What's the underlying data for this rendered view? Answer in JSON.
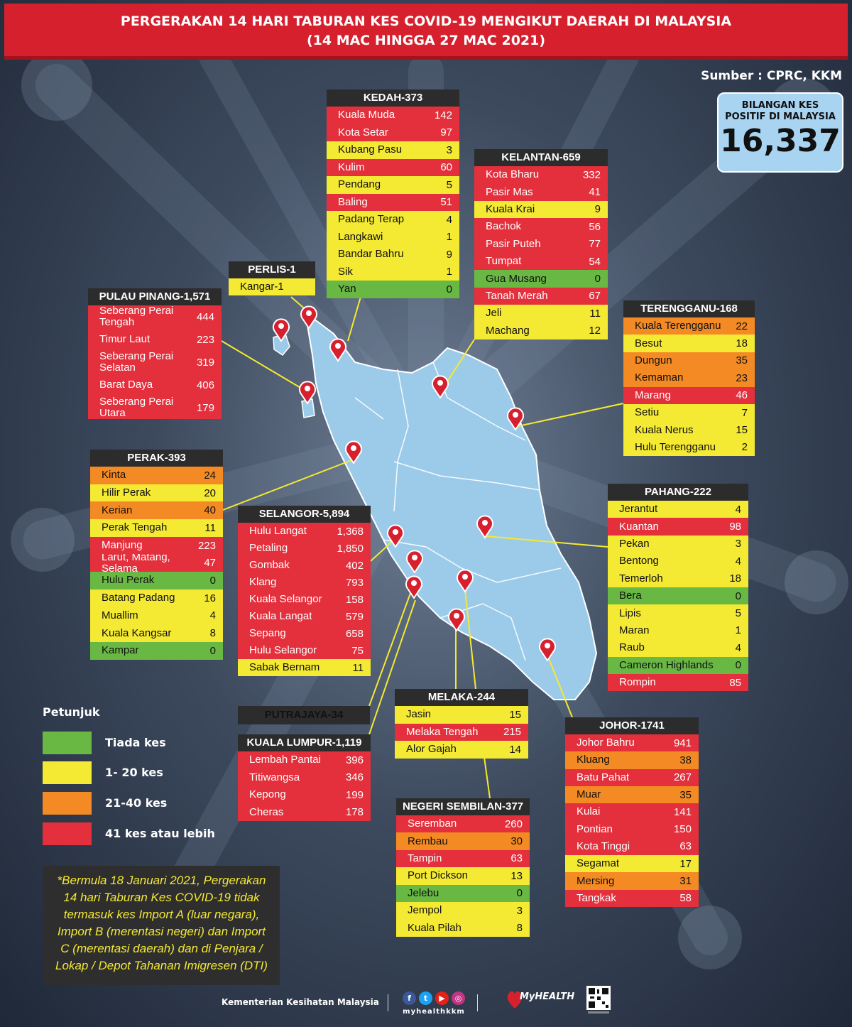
{
  "header": {
    "line1": "PERGERAKAN 14 HARI TABURAN KES COVID-19 MENGIKUT DAERAH DI MALAYSIA",
    "line2": "(14 MAC HINGGA 27 MAC 2021)"
  },
  "source": "Sumber : CPRC, KKM",
  "total": {
    "label_line1": "BILANGAN KES",
    "label_line2": "POSITIF DI MALAYSIA",
    "value": "16,337"
  },
  "colors": {
    "green": "#69b844",
    "yellow": "#f4e933",
    "orange": "#f48a24",
    "red": "#e3303c"
  },
  "states": {
    "kedah": {
      "title": "KEDAH-373",
      "rows": [
        {
          "name": "Kuala Muda",
          "count": "142",
          "level": "r"
        },
        {
          "name": "Kota Setar",
          "count": "97",
          "level": "r"
        },
        {
          "name": "Kubang Pasu",
          "count": "3",
          "level": "y"
        },
        {
          "name": "Kulim",
          "count": "60",
          "level": "r"
        },
        {
          "name": "Pendang",
          "count": "5",
          "level": "y"
        },
        {
          "name": "Baling",
          "count": "51",
          "level": "r"
        },
        {
          "name": "Padang Terap",
          "count": "4",
          "level": "y"
        },
        {
          "name": "Langkawi",
          "count": "1",
          "level": "y"
        },
        {
          "name": "Bandar Bahru",
          "count": "9",
          "level": "y"
        },
        {
          "name": "Sik",
          "count": "1",
          "level": "y"
        },
        {
          "name": "Yan",
          "count": "0",
          "level": "g"
        }
      ]
    },
    "kelantan": {
      "title": "KELANTAN-659",
      "rows": [
        {
          "name": "Kota Bharu",
          "count": "332",
          "level": "r"
        },
        {
          "name": "Pasir Mas",
          "count": "41",
          "level": "r"
        },
        {
          "name": "Kuala Krai",
          "count": "9",
          "level": "y"
        },
        {
          "name": "Bachok",
          "count": "56",
          "level": "r"
        },
        {
          "name": "Pasir Puteh",
          "count": "77",
          "level": "r"
        },
        {
          "name": "Tumpat",
          "count": "54",
          "level": "r"
        },
        {
          "name": "Gua Musang",
          "count": "0",
          "level": "g"
        },
        {
          "name": "Tanah Merah",
          "count": "67",
          "level": "r"
        },
        {
          "name": "Jeli",
          "count": "11",
          "level": "y"
        },
        {
          "name": "Machang",
          "count": "12",
          "level": "y"
        }
      ]
    },
    "perlis": {
      "title": "PERLIS-1",
      "rows": [
        {
          "name": "Kangar-1",
          "count": "",
          "level": "y"
        }
      ]
    },
    "pinang": {
      "title": "PULAU PINANG-1,571",
      "rows": [
        {
          "name": "Seberang Perai Tengah",
          "count": "444",
          "level": "r"
        },
        {
          "name": "Timur Laut",
          "count": "223",
          "level": "r"
        },
        {
          "name": "Seberang Perai Selatan",
          "count": "319",
          "level": "r"
        },
        {
          "name": "Barat Daya",
          "count": "406",
          "level": "r"
        },
        {
          "name": "Seberang Perai Utara",
          "count": "179",
          "level": "r"
        }
      ]
    },
    "terengganu": {
      "title": "TERENGGANU-168",
      "rows": [
        {
          "name": "Kuala Terengganu",
          "count": "22",
          "level": "o"
        },
        {
          "name": "Besut",
          "count": "18",
          "level": "y"
        },
        {
          "name": "Dungun",
          "count": "35",
          "level": "o"
        },
        {
          "name": "Kemaman",
          "count": "23",
          "level": "o"
        },
        {
          "name": "Marang",
          "count": "46",
          "level": "r"
        },
        {
          "name": "Setiu",
          "count": "7",
          "level": "y"
        },
        {
          "name": "Kuala Nerus",
          "count": "15",
          "level": "y"
        },
        {
          "name": "Hulu Terengganu",
          "count": "2",
          "level": "y"
        }
      ]
    },
    "perak": {
      "title": "PERAK-393",
      "rows": [
        {
          "name": "Kinta",
          "count": "24",
          "level": "o"
        },
        {
          "name": "Hilir Perak",
          "count": "20",
          "level": "y"
        },
        {
          "name": "Kerian",
          "count": "40",
          "level": "o"
        },
        {
          "name": "Perak Tengah",
          "count": "11",
          "level": "y"
        },
        {
          "name": "Manjung",
          "count": "223",
          "level": "r"
        },
        {
          "name": "Larut, Matang, Selama",
          "count": "47",
          "level": "r"
        },
        {
          "name": "Hulu Perak",
          "count": "0",
          "level": "g"
        },
        {
          "name": "Batang Padang",
          "count": "16",
          "level": "y"
        },
        {
          "name": "Muallim",
          "count": "4",
          "level": "y"
        },
        {
          "name": "Kuala Kangsar",
          "count": "8",
          "level": "y"
        },
        {
          "name": "Kampar",
          "count": "0",
          "level": "g"
        }
      ]
    },
    "selangor": {
      "title": "SELANGOR-5,894",
      "rows": [
        {
          "name": "Hulu Langat",
          "count": "1,368",
          "level": "r"
        },
        {
          "name": "Petaling",
          "count": "1,850",
          "level": "r"
        },
        {
          "name": "Gombak",
          "count": "402",
          "level": "r"
        },
        {
          "name": "Klang",
          "count": "793",
          "level": "r"
        },
        {
          "name": "Kuala Selangor",
          "count": "158",
          "level": "r"
        },
        {
          "name": "Kuala Langat",
          "count": "579",
          "level": "r"
        },
        {
          "name": "Sepang",
          "count": "658",
          "level": "r"
        },
        {
          "name": "Hulu Selangor",
          "count": "75",
          "level": "r"
        },
        {
          "name": "Sabak Bernam",
          "count": "11",
          "level": "y"
        }
      ]
    },
    "pahang": {
      "title": "PAHANG-222",
      "rows": [
        {
          "name": "Jerantut",
          "count": "4",
          "level": "y"
        },
        {
          "name": "Kuantan",
          "count": "98",
          "level": "r"
        },
        {
          "name": "Pekan",
          "count": "3",
          "level": "y"
        },
        {
          "name": "Bentong",
          "count": "4",
          "level": "y"
        },
        {
          "name": "Temerloh",
          "count": "18",
          "level": "y"
        },
        {
          "name": "Bera",
          "count": "0",
          "level": "g"
        },
        {
          "name": "Lipis",
          "count": "5",
          "level": "y"
        },
        {
          "name": "Maran",
          "count": "1",
          "level": "y"
        },
        {
          "name": "Raub",
          "count": "4",
          "level": "y"
        },
        {
          "name": "Cameron Highlands",
          "count": "0",
          "level": "g"
        },
        {
          "name": "Rompin",
          "count": "85",
          "level": "r"
        }
      ]
    },
    "putrajaya": {
      "title": "PUTRAJAYA-34"
    },
    "kl": {
      "title": "KUALA LUMPUR-1,119",
      "rows": [
        {
          "name": "Lembah Pantai",
          "count": "396",
          "level": "r"
        },
        {
          "name": "Titiwangsa",
          "count": "346",
          "level": "r"
        },
        {
          "name": "Kepong",
          "count": "199",
          "level": "r"
        },
        {
          "name": "Cheras",
          "count": "178",
          "level": "r"
        }
      ]
    },
    "melaka": {
      "title": "MELAKA-244",
      "rows": [
        {
          "name": "Jasin",
          "count": "15",
          "level": "y"
        },
        {
          "name": "Melaka Tengah",
          "count": "215",
          "level": "r"
        },
        {
          "name": "Alor Gajah",
          "count": "14",
          "level": "y"
        }
      ]
    },
    "johor": {
      "title": "JOHOR-1741",
      "rows": [
        {
          "name": "Johor Bahru",
          "count": "941",
          "level": "r"
        },
        {
          "name": "Kluang",
          "count": "38",
          "level": "o"
        },
        {
          "name": "Batu Pahat",
          "count": "267",
          "level": "r"
        },
        {
          "name": "Muar",
          "count": "35",
          "level": "o"
        },
        {
          "name": "Kulai",
          "count": "141",
          "level": "r"
        },
        {
          "name": "Pontian",
          "count": "150",
          "level": "r"
        },
        {
          "name": "Kota Tinggi",
          "count": "63",
          "level": "r"
        },
        {
          "name": "Segamat",
          "count": "17",
          "level": "y"
        },
        {
          "name": "Mersing",
          "count": "31",
          "level": "o"
        },
        {
          "name": "Tangkak",
          "count": "58",
          "level": "r"
        }
      ]
    },
    "ns": {
      "title": "NEGERI SEMBILAN-377",
      "rows": [
        {
          "name": "Seremban",
          "count": "260",
          "level": "r"
        },
        {
          "name": "Rembau",
          "count": "30",
          "level": "o"
        },
        {
          "name": "Tampin",
          "count": "63",
          "level": "r"
        },
        {
          "name": "Port Dickson",
          "count": "13",
          "level": "y"
        },
        {
          "name": "Jelebu",
          "count": "0",
          "level": "g"
        },
        {
          "name": "Jempol",
          "count": "3",
          "level": "y"
        },
        {
          "name": "Kuala Pilah",
          "count": "8",
          "level": "y"
        }
      ]
    }
  },
  "legend": {
    "title": "Petunjuk",
    "items": [
      {
        "label": "Tiada kes",
        "color": "#69b844"
      },
      {
        "label": "1- 20 kes",
        "color": "#f4e933"
      },
      {
        "label": "21-40 kes",
        "color": "#f48a24"
      },
      {
        "label": "41 kes atau lebih",
        "color": "#e3303c"
      }
    ]
  },
  "note": "*Bermula 18 Januari 2021, Pergerakan 14 hari Taburan Kes COVID-19 tidak termasuk kes Import A (luar negara), Import B (merentasi negeri) dan Import C (merentasi daerah) dan di Penjara / Lokap / Depot Tahanan Imigresen (DTI)",
  "footer": {
    "ministry": "Kementerian Kesihatan Malaysia",
    "handle": "myhealthkkm",
    "logo_text": "MyHEALTH"
  }
}
